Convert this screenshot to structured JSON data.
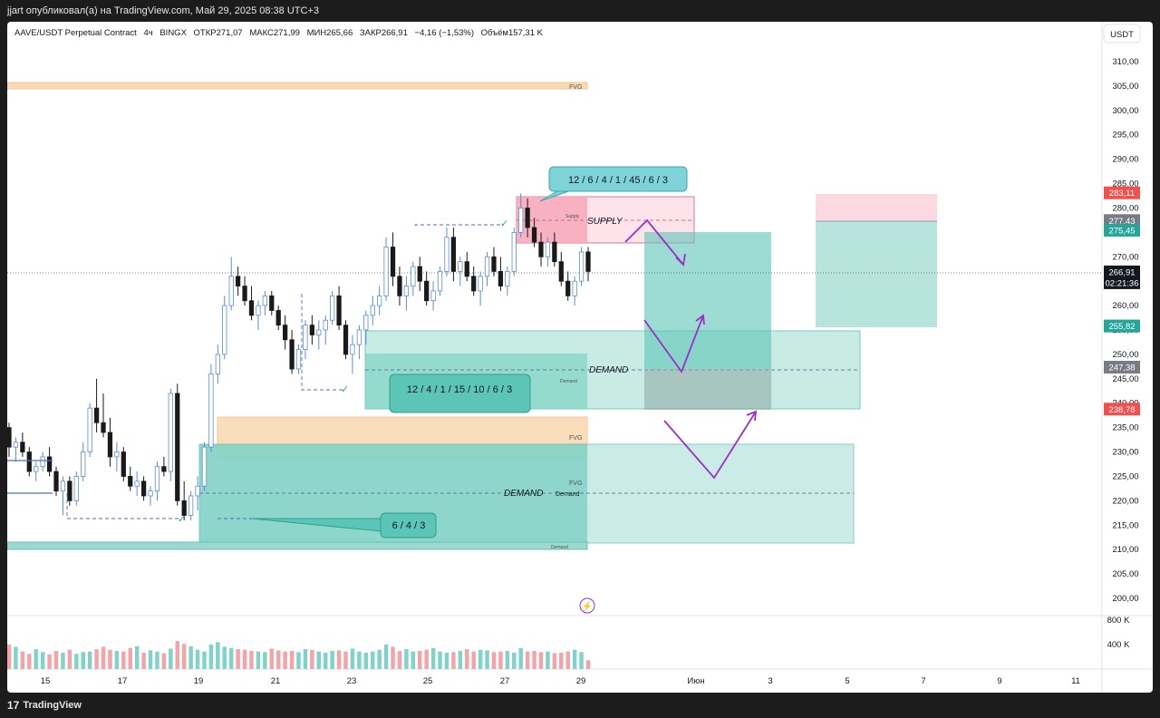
{
  "header": {
    "publish_line": "jjart опубликовал(а) на TradingView.com, Май 29, 2025 08:38 UTC+3"
  },
  "legend": {
    "symbol": "AAVE/USDT Perpetual Contract",
    "interval": "4ч",
    "exchange": "BINGX",
    "open": "ОТКР271,07",
    "high": "МАКС271,99",
    "low": "МИН265,66",
    "close": "ЗАКР266,91",
    "change": "−4,16 (−1,53%)",
    "volume": "Объём157,31 K"
  },
  "currency_button": "USDT",
  "footer": {
    "brand": "TradingView"
  },
  "colors": {
    "up": "#5b8dd6",
    "down": "#1a1a1a",
    "teal_zone": "#5cc5b5",
    "supply_zone": "#f7a8b8",
    "fvg_zone": "#f9d2a5",
    "arrow": "#9b30c8",
    "price_red": "#f05050",
    "price_teal": "#26a69a",
    "price_gray": "#787b86",
    "price_black": "#131722"
  },
  "annotations": {
    "fvg_top": "FVG",
    "fvg_mid1": "FVG",
    "fvg_mid2": "FVG",
    "supply_big": "SUPPLY",
    "supply_small": "Supply",
    "demand_big_upper": "DEMAND",
    "demand_small_upper": "Demand",
    "demand_big_lower": "DEMAND",
    "demand_small_lower": "Demand",
    "demand_bottom": "Demand",
    "callout_top": "12 / 6 / 4 / 1 / 45 / 6 / 3",
    "callout_mid": "12 / 4 / 1 / 15 / 10 / 6 / 3",
    "callout_bottom": "6 / 4 / 3",
    "flash": "⚡"
  },
  "chart_data": {
    "type": "candlestick",
    "yaxis_ticks": [
      310,
      305,
      300,
      295,
      290,
      285,
      280,
      275,
      270,
      265,
      260,
      255,
      250,
      245,
      240,
      235,
      230,
      225,
      220,
      215,
      210,
      205,
      200
    ],
    "ytick_labels": [
      "310,00",
      "305,00",
      "300,00",
      "295,00",
      "290,00",
      "285,00",
      "280,00",
      "275,00",
      "270,00",
      "265,00",
      "260,00",
      "255,00",
      "250,00",
      "245,00",
      "240,00",
      "235,00",
      "230,00",
      "225,00",
      "220,00",
      "215,00",
      "210,00",
      "205,00",
      "200,00"
    ],
    "x_labels": [
      "15",
      "17",
      "19",
      "21",
      "23",
      "25",
      "27",
      "29",
      "Июн",
      "3",
      "5",
      "7",
      "9",
      "11"
    ],
    "volume_labels": [
      "800 K",
      "400 K"
    ],
    "price_tags": [
      {
        "value": "283,11",
        "kind": "red"
      },
      {
        "value": "277,43",
        "kind": "gray"
      },
      {
        "value": "275,45",
        "kind": "teal"
      },
      {
        "value": "266,91",
        "kind": "black",
        "sub": "02:21:36"
      },
      {
        "value": "255,82",
        "kind": "teal"
      },
      {
        "value": "247,38",
        "kind": "gray"
      },
      {
        "value": "238,78",
        "kind": "red"
      }
    ],
    "candles": [
      [
        235,
        236,
        229,
        231
      ],
      [
        231,
        233,
        228,
        232
      ],
      [
        232,
        234,
        229,
        230
      ],
      [
        230,
        231,
        225,
        226
      ],
      [
        226,
        228,
        224,
        227
      ],
      [
        227,
        230,
        226,
        229
      ],
      [
        229,
        231,
        225,
        226
      ],
      [
        226,
        227,
        221,
        222
      ],
      [
        222,
        225,
        217,
        224
      ],
      [
        224,
        225,
        219,
        220
      ],
      [
        220,
        226,
        219,
        225
      ],
      [
        225,
        232,
        224,
        230
      ],
      [
        230,
        240,
        229,
        239
      ],
      [
        239,
        245,
        234,
        236
      ],
      [
        236,
        242,
        233,
        234
      ],
      [
        234,
        237,
        227,
        229
      ],
      [
        229,
        232,
        226,
        230
      ],
      [
        230,
        231,
        224,
        225
      ],
      [
        225,
        227,
        222,
        223
      ],
      [
        223,
        226,
        221,
        224
      ],
      [
        224,
        225,
        220,
        221
      ],
      [
        221,
        223,
        219,
        222
      ],
      [
        222,
        228,
        220,
        227
      ],
      [
        227,
        229,
        225,
        226
      ],
      [
        226,
        243,
        224,
        242
      ],
      [
        242,
        244,
        219,
        220
      ],
      [
        220,
        224,
        216,
        217
      ],
      [
        217,
        222,
        216,
        221
      ],
      [
        221,
        225,
        218,
        223
      ],
      [
        223,
        232,
        222,
        231
      ],
      [
        231,
        248,
        230,
        246
      ],
      [
        246,
        252,
        244,
        250
      ],
      [
        250,
        262,
        249,
        260
      ],
      [
        260,
        270,
        259,
        266
      ],
      [
        266,
        268,
        262,
        264
      ],
      [
        264,
        266,
        260,
        261
      ],
      [
        261,
        264,
        257,
        258
      ],
      [
        258,
        261,
        255,
        260
      ],
      [
        260,
        263,
        258,
        262
      ],
      [
        262,
        263,
        258,
        259
      ],
      [
        259,
        260,
        255,
        256
      ],
      [
        256,
        258,
        251,
        253
      ],
      [
        253,
        255,
        246,
        247
      ],
      [
        247,
        252,
        246,
        251
      ],
      [
        251,
        257,
        249,
        256
      ],
      [
        256,
        258,
        252,
        254
      ],
      [
        254,
        257,
        251,
        255
      ],
      [
        255,
        258,
        252,
        257
      ],
      [
        257,
        263,
        256,
        262
      ],
      [
        262,
        264,
        255,
        256
      ],
      [
        256,
        257,
        249,
        250
      ],
      [
        250,
        254,
        246,
        252
      ],
      [
        252,
        256,
        249,
        255
      ],
      [
        255,
        259,
        252,
        258
      ],
      [
        258,
        262,
        256,
        260
      ],
      [
        260,
        264,
        258,
        262
      ],
      [
        262,
        274,
        261,
        272
      ],
      [
        272,
        275,
        264,
        266
      ],
      [
        266,
        268,
        260,
        262
      ],
      [
        262,
        266,
        259,
        264
      ],
      [
        264,
        269,
        262,
        268
      ],
      [
        268,
        270,
        263,
        265
      ],
      [
        265,
        267,
        260,
        261
      ],
      [
        261,
        265,
        259,
        263
      ],
      [
        263,
        268,
        262,
        267
      ],
      [
        267,
        276,
        266,
        274
      ],
      [
        274,
        276,
        265,
        267
      ],
      [
        267,
        270,
        264,
        269
      ],
      [
        269,
        271,
        265,
        266
      ],
      [
        266,
        268,
        262,
        263
      ],
      [
        263,
        267,
        260,
        266
      ],
      [
        266,
        271,
        264,
        270
      ],
      [
        270,
        272,
        266,
        267
      ],
      [
        267,
        270,
        263,
        264
      ],
      [
        264,
        268,
        262,
        267
      ],
      [
        267,
        276,
        266,
        275
      ],
      [
        275,
        283,
        274,
        280
      ],
      [
        280,
        282,
        274,
        276
      ],
      [
        276,
        278,
        272,
        273
      ],
      [
        273,
        275,
        268,
        270
      ],
      [
        270,
        274,
        268,
        273
      ],
      [
        273,
        275,
        268,
        269
      ],
      [
        269,
        271,
        264,
        265
      ],
      [
        265,
        267,
        261,
        262
      ],
      [
        262,
        266,
        260,
        265
      ],
      [
        265,
        272,
        264,
        271
      ],
      [
        271,
        272,
        265,
        267
      ]
    ],
    "volumes": [
      420,
      380,
      300,
      260,
      340,
      290,
      250,
      310,
      280,
      330,
      260,
      290,
      300,
      340,
      380,
      330,
      310,
      300,
      360,
      390,
      280,
      320,
      300,
      270,
      350,
      480,
      430,
      390,
      330,
      300,
      420,
      460,
      380,
      360,
      340,
      330,
      310,
      300,
      290,
      350,
      320,
      300,
      310,
      290,
      340,
      330,
      300,
      280,
      310,
      320,
      300,
      350,
      300,
      280,
      300,
      330,
      420,
      380,
      310,
      340,
      300,
      310,
      330,
      360,
      300,
      280,
      290,
      310,
      340,
      300,
      330,
      320,
      290,
      300,
      310,
      280,
      360,
      300,
      310,
      290,
      300,
      270,
      280,
      300,
      330,
      290,
      150
    ]
  }
}
